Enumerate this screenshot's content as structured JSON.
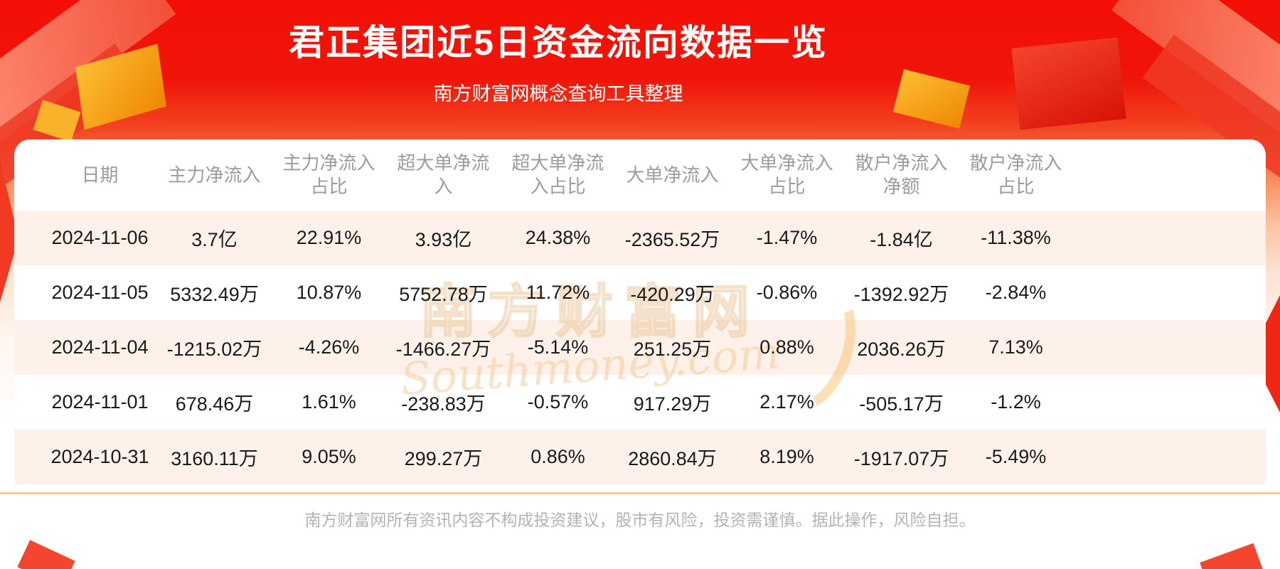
{
  "banner": {
    "title": "君正集团近5日资金流向数据一览",
    "subtitle": "南方财富网概念查询工具整理"
  },
  "table": {
    "headers": [
      "日期",
      "主力净流入",
      "主力净流入\n占比",
      "超大单净流\n入",
      "超大单净流\n入占比",
      "大单净流入",
      "大单净流入\n占比",
      "散户净流入\n净额",
      "散户净流入\n占比"
    ]
  },
  "chart_data": {
    "type": "table",
    "title": "君正集团近5日资金流向数据一览",
    "columns": [
      "日期",
      "主力净流入",
      "主力净流入占比",
      "超大单净流入",
      "超大单净流入占比",
      "大单净流入",
      "大单净流入占比",
      "散户净流入净额",
      "散户净流入占比"
    ],
    "rows": [
      [
        "2024-11-06",
        "3.7亿",
        "22.91%",
        "3.93亿",
        "24.38%",
        "-2365.52万",
        "-1.47%",
        "-1.84亿",
        "-11.38%"
      ],
      [
        "2024-11-05",
        "5332.49万",
        "10.87%",
        "5752.78万",
        "11.72%",
        "-420.29万",
        "-0.86%",
        "-1392.92万",
        "-2.84%"
      ],
      [
        "2024-11-04",
        "-1215.02万",
        "-4.26%",
        "-1466.27万",
        "-5.14%",
        "251.25万",
        "0.88%",
        "2036.26万",
        "7.13%"
      ],
      [
        "2024-11-01",
        "678.46万",
        "1.61%",
        "-238.83万",
        "-0.57%",
        "917.29万",
        "2.17%",
        "-505.17万",
        "-1.2%"
      ],
      [
        "2024-10-31",
        "3160.11万",
        "9.05%",
        "299.27万",
        "0.86%",
        "2860.84万",
        "8.19%",
        "-1917.07万",
        "-5.49%"
      ]
    ]
  },
  "watermark": {
    "brand": "南方财富网",
    "script": "Southmoney.com"
  },
  "footer": {
    "disclaimer": "南方财富网所有资讯内容不构成投资建议，股市有风险，投资需谨慎。据此操作，风险自担。"
  },
  "colors": {
    "banner_red": "#f21309",
    "accent_gold": "#f9b22a",
    "row_stripe": "#fdf1e9",
    "header_text": "#9c9c9c",
    "cell_text": "#1a1a1a",
    "divider": "#f8c894",
    "footer_text": "#b3b3b3"
  }
}
